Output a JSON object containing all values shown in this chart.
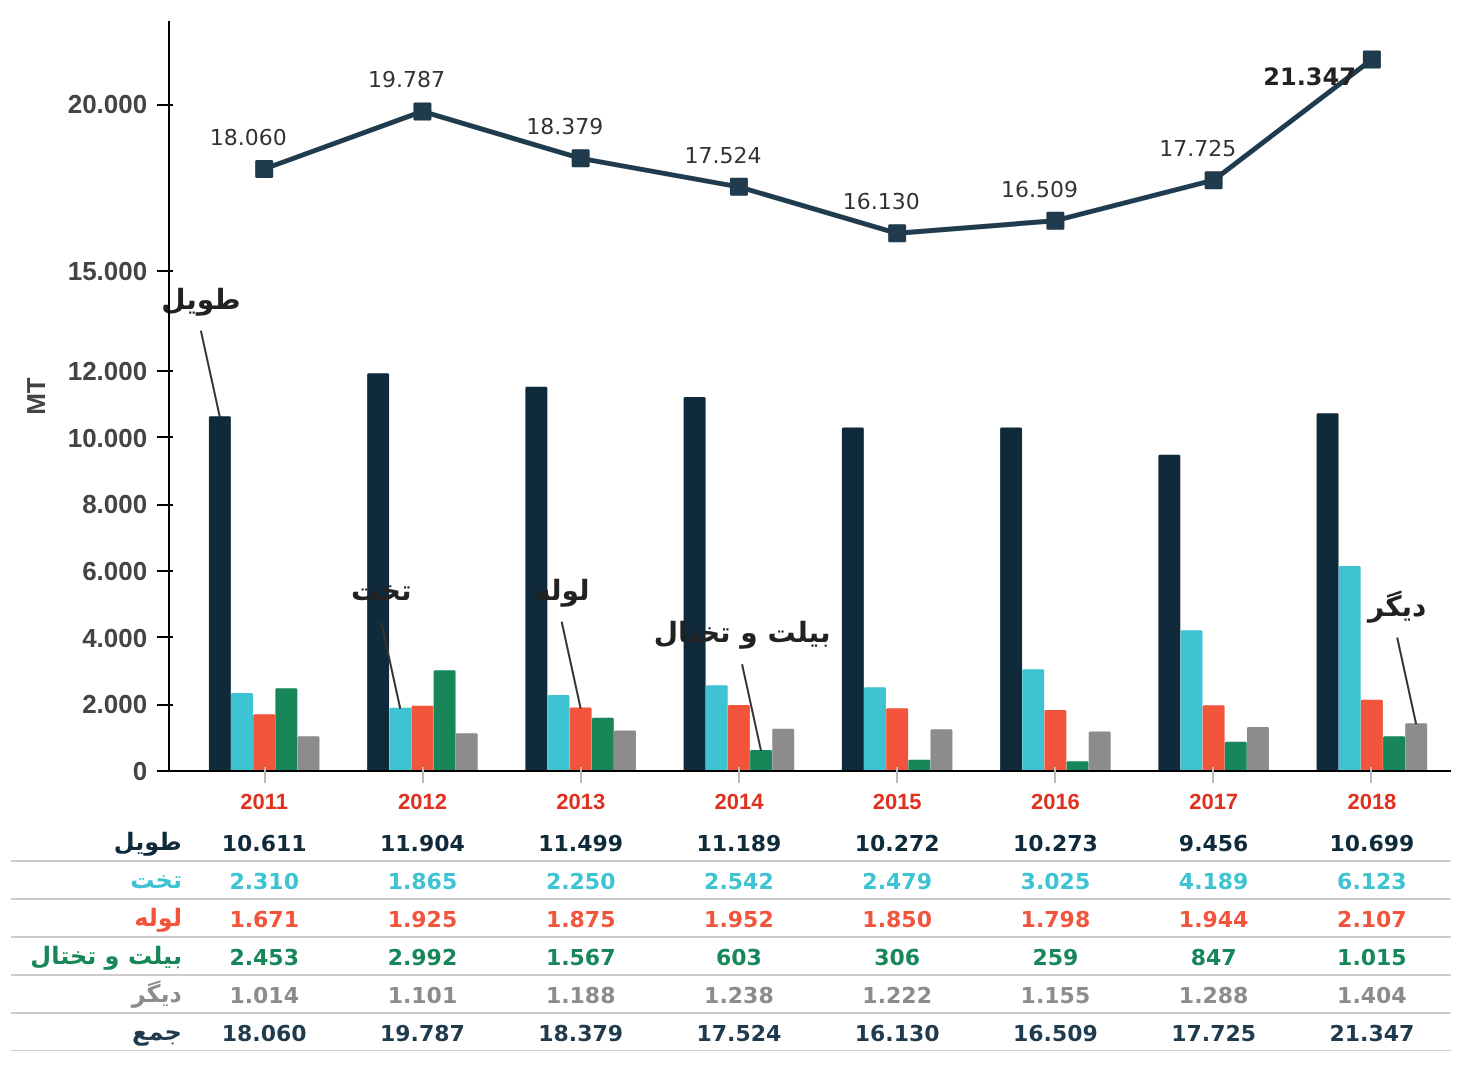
{
  "chart_data": {
    "type": "bar",
    "ylabel": "MT",
    "categories": [
      "2011",
      "2012",
      "2013",
      "2014",
      "2015",
      "2016",
      "2017",
      "2018"
    ],
    "series": [
      {
        "name": "طویل",
        "color": "#0f2a3a",
        "values": [
          10611,
          11904,
          11499,
          11189,
          10272,
          10273,
          9456,
          10699
        ],
        "value_labels": [
          "10.611",
          "11.904",
          "11.499",
          "11.189",
          "10.272",
          "10.273",
          "9.456",
          "10.699"
        ]
      },
      {
        "name": "تخت",
        "color": "#3ec3d3",
        "values": [
          2310,
          1865,
          2250,
          2542,
          2479,
          3025,
          4189,
          6123
        ],
        "value_labels": [
          "2.310",
          "1.865",
          "2.250",
          "2.542",
          "2.479",
          "3.025",
          "4.189",
          "6.123"
        ]
      },
      {
        "name": "لوله",
        "color": "#f2553b",
        "values": [
          1671,
          1925,
          1875,
          1952,
          1850,
          1798,
          1944,
          2107
        ],
        "value_labels": [
          "1.671",
          "1.925",
          "1.875",
          "1.952",
          "1.850",
          "1.798",
          "1.944",
          "2.107"
        ]
      },
      {
        "name": "بیلت و تختال",
        "color": "#17875a",
        "values": [
          2453,
          2992,
          1567,
          603,
          306,
          259,
          847,
          1015
        ],
        "value_labels": [
          "2.453",
          "2.992",
          "1.567",
          "603",
          "306",
          "259",
          "847",
          "1.015"
        ]
      },
      {
        "name": "دیگر",
        "color": "#8c8c8c",
        "values": [
          1014,
          1101,
          1188,
          1238,
          1222,
          1155,
          1288,
          1404
        ],
        "value_labels": [
          "1.014",
          "1.101",
          "1.188",
          "1.238",
          "1.222",
          "1.155",
          "1.288",
          "1.404"
        ]
      },
      {
        "name": "جمع",
        "type": "line",
        "color": "#1f3b4d",
        "marker": "square",
        "values": [
          18060,
          19787,
          18379,
          17524,
          16130,
          16509,
          17725,
          21347
        ],
        "value_labels": [
          "18.060",
          "19.787",
          "18.379",
          "17.524",
          "16.130",
          "16.509",
          "17.725",
          "21.347"
        ]
      }
    ],
    "ylim": [
      0,
      22500
    ],
    "yticks": [
      0,
      {
        "value": 2000,
        "label": "2.000"
      },
      {
        "value": 4000,
        "label": "4.000"
      },
      {
        "value": 6000,
        "label": "6.000"
      },
      {
        "value": 8000,
        "label": "8.000"
      },
      {
        "value": 10000,
        "label": "10.000"
      },
      {
        "value": 12000,
        "label": "12.000"
      },
      {
        "value": 15000,
        "label": "15.000"
      },
      {
        "value": 20000,
        "label": "20.000"
      }
    ],
    "grid": false
  }
}
